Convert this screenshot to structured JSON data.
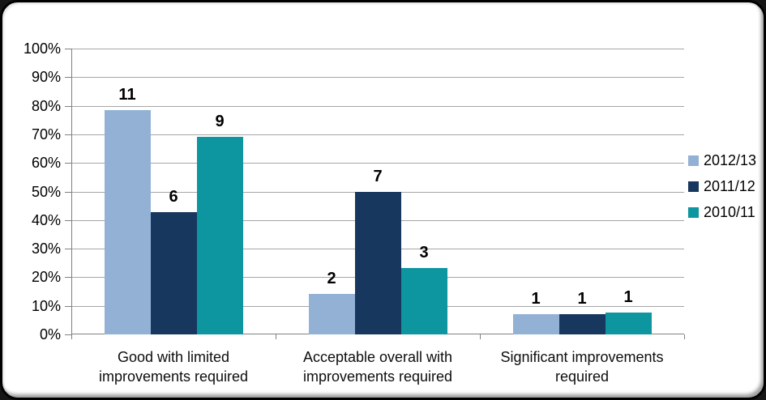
{
  "chart_data": {
    "type": "bar",
    "categories": [
      "Good with limited improvements required",
      "Acceptable overall with improvements required",
      "Significant improvements required"
    ],
    "series": [
      {
        "name": "2012/13",
        "color": "#92B1D5",
        "counts": [
          11,
          2,
          1
        ],
        "percents": [
          78.6,
          14.3,
          7.1
        ]
      },
      {
        "name": "2011/12",
        "color": "#17375E",
        "counts": [
          6,
          7,
          1
        ],
        "percents": [
          42.9,
          50.0,
          7.1
        ]
      },
      {
        "name": "2010/11",
        "color": "#0D95A0",
        "counts": [
          9,
          3,
          1
        ],
        "percents": [
          69.2,
          23.1,
          7.7
        ]
      }
    ],
    "bar_value_labels": "counts",
    "y_axis": {
      "min": 0,
      "max": 100,
      "step": 10,
      "tick_labels": [
        "0%",
        "10%",
        "20%",
        "30%",
        "40%",
        "50%",
        "60%",
        "70%",
        "80%",
        "90%",
        "100%"
      ]
    },
    "grid": true,
    "legend_position": "right",
    "colors": {
      "gridline": "#A6A6A6",
      "axis": "#808080",
      "label": "#000000",
      "frame_border": "#000000",
      "background": "#FFFFFF"
    }
  }
}
